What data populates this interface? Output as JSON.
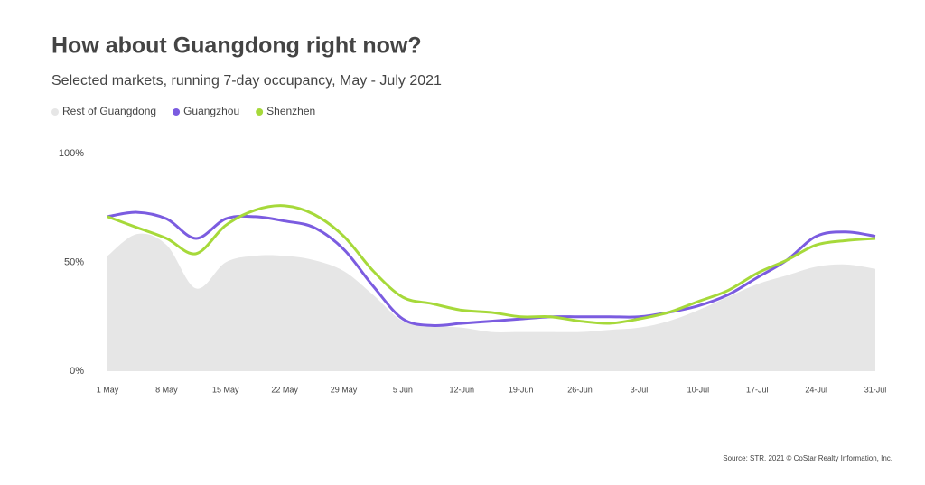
{
  "chart_data": {
    "type": "line",
    "title": "How about Guangdong right now?",
    "subtitle": "Selected markets, running 7-day occupancy, May - July 2021",
    "source": "Source: STR. 2021 © CoStar Realty Information, Inc.",
    "categories": [
      "1 May",
      null,
      "8 May",
      null,
      "15 May",
      null,
      "22 May",
      null,
      "29 May",
      null,
      "5 Jun",
      null,
      "12-Jun",
      null,
      "19-Jun",
      null,
      "26-Jun",
      null,
      "3-Jul",
      null,
      "10-Jul",
      null,
      "17-Jul",
      null,
      "24-Jul",
      null,
      "31-Jul"
    ],
    "series": [
      {
        "name": "Rest of Guangdong",
        "type": "area",
        "color": "#e6e6e6",
        "values": [
          53,
          63,
          58,
          38,
          50,
          53,
          53,
          51,
          46,
          35,
          23,
          21,
          20,
          18,
          18,
          18,
          18,
          19,
          20,
          23,
          28,
          34,
          40,
          44,
          48,
          49,
          47
        ]
      },
      {
        "name": "Guangzhou",
        "type": "line",
        "color": "#7b5ce0",
        "values": [
          71,
          73,
          70,
          61,
          70,
          71,
          69,
          66,
          56,
          39,
          24,
          21,
          22,
          23,
          24,
          25,
          25,
          25,
          25,
          27,
          30,
          35,
          43,
          51,
          62,
          64,
          62
        ]
      },
      {
        "name": "Shenzhen",
        "type": "line",
        "color": "#a6d93a",
        "values": [
          71,
          66,
          61,
          54,
          67,
          74,
          76,
          72,
          62,
          46,
          34,
          31,
          28,
          27,
          25,
          25,
          23,
          22,
          24,
          27,
          32,
          37,
          45,
          51,
          58,
          60,
          61
        ]
      }
    ],
    "ylim": [
      0,
      100
    ],
    "yticks": [
      {
        "value": 0,
        "label": "0%"
      },
      {
        "value": 50,
        "label": "50%"
      },
      {
        "value": 100,
        "label": "100%"
      }
    ],
    "grid": false
  }
}
